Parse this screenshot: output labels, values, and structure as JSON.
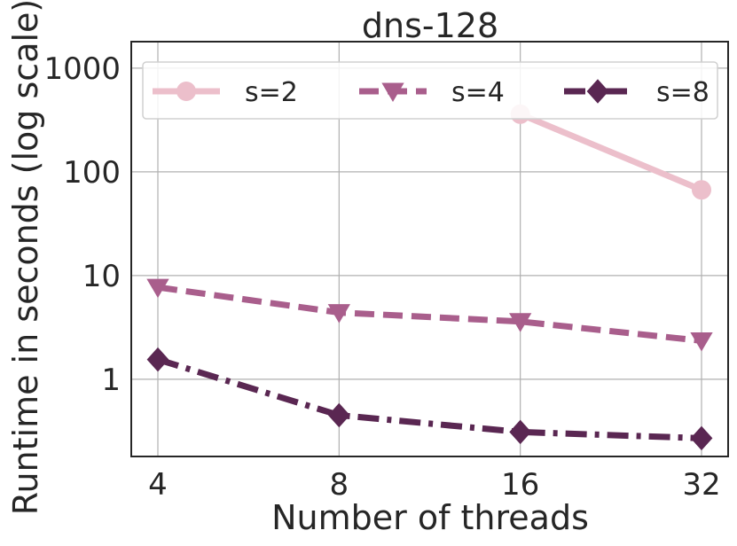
{
  "chart_data": {
    "type": "line",
    "title": "dns-128",
    "xlabel": "Number of threads",
    "ylabel": "Runtime in seconds (log scale)",
    "x": [
      4,
      8,
      16,
      32
    ],
    "x_tick_labels": [
      "4",
      "8",
      "16",
      "32"
    ],
    "x_scale": "log2",
    "y_scale": "log",
    "ylim": [
      0.18,
      1800
    ],
    "y_ticks": [
      1,
      10,
      100,
      1000
    ],
    "y_tick_labels": [
      "1",
      "10",
      "100",
      "1000"
    ],
    "grid": true,
    "legend_position": "top",
    "series": [
      {
        "name": "s=2",
        "values": [
          null,
          null,
          360,
          67
        ],
        "color": "#ecbfcb",
        "marker": "circle",
        "line_style": "solid"
      },
      {
        "name": "s=4",
        "values": [
          7.7,
          4.4,
          3.6,
          2.35
        ],
        "color": "#a95e8c",
        "marker": "triangle-down",
        "line_style": "dashed"
      },
      {
        "name": "s=8",
        "values": [
          1.55,
          0.45,
          0.31,
          0.27
        ],
        "color": "#5a2752",
        "marker": "diamond",
        "line_style": "dashdot"
      }
    ]
  }
}
